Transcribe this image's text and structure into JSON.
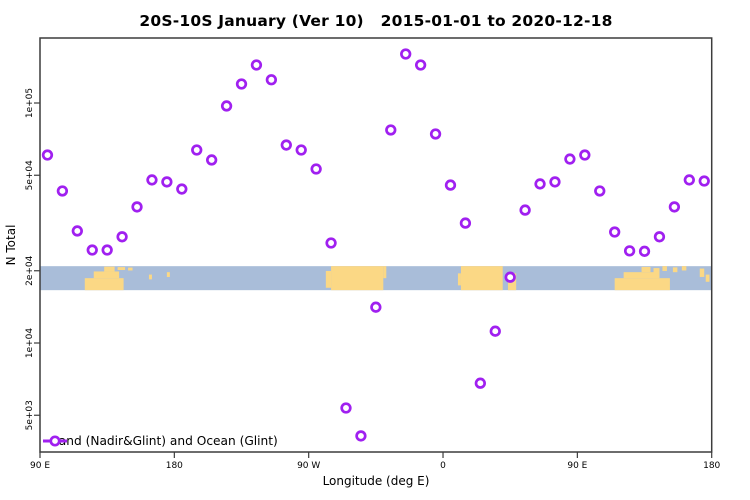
{
  "colors": {
    "marker": "#A020F0",
    "marker_fill": "#FFFFFF",
    "ocean": "#A9BDD9",
    "land": "#FBD885",
    "axis": "#3C3C3C",
    "text": "#000000"
  },
  "y_axis": {
    "title": "N Total",
    "scale": "log10",
    "ticks": [
      {
        "value": 100000,
        "label": "1e+05"
      },
      {
        "value": 50000,
        "label": "5e+04"
      },
      {
        "value": 20000,
        "label": "2e+04"
      },
      {
        "value": 10000,
        "label": "1e+04"
      },
      {
        "value": 5000,
        "label": "5e+03"
      }
    ]
  },
  "x_axis": {
    "title": "Longitude (deg E)",
    "span_deg": 450,
    "ticks": [
      {
        "offset_deg": 0,
        "label": "90 E"
      },
      {
        "offset_deg": 90,
        "label": "180"
      },
      {
        "offset_deg": 180,
        "label": "90 W"
      },
      {
        "offset_deg": 270,
        "label": "0"
      },
      {
        "offset_deg": 360,
        "label": "90 E"
      },
      {
        "offset_deg": 450,
        "label": "180"
      }
    ]
  },
  "legend": {
    "marker": "open-circle-on-line"
  },
  "chart_data": {
    "type": "scatter",
    "title": "20S-10S January (Ver 10)   2015-01-01 to 2020-12-18",
    "xlabel": "Longitude (deg E)",
    "ylabel": "N Total",
    "y_scale": "log10",
    "ylim": [
      4000,
      200000
    ],
    "x_axis_note": "longitude wraps eastward: 90E -> 180 -> 90W -> 0 -> 90E -> 180 (450 deg total)",
    "grid": false,
    "legend_position": "bottom-left inside plot",
    "point_format": [
      "deg_east_of_90E",
      "n_total"
    ],
    "series": [
      {
        "name": "Land (Nadir&Glint) and Ocean (Glint)",
        "points": [
          [
            5,
            60700
          ],
          [
            15,
            43000
          ],
          [
            25,
            29300
          ],
          [
            35,
            24400
          ],
          [
            45,
            24400
          ],
          [
            55,
            27700
          ],
          [
            65,
            36900
          ],
          [
            75,
            47800
          ],
          [
            85,
            46900
          ],
          [
            95,
            43800
          ],
          [
            105,
            63700
          ],
          [
            115,
            57900
          ],
          [
            125,
            97200
          ],
          [
            135,
            120000
          ],
          [
            145,
            144000
          ],
          [
            155,
            125000
          ],
          [
            165,
            66800
          ],
          [
            175,
            63700
          ],
          [
            185,
            53100
          ],
          [
            195,
            26100
          ],
          [
            205,
            5360
          ],
          [
            215,
            4100
          ],
          [
            225,
            14100
          ],
          [
            235,
            77200
          ],
          [
            245,
            160000
          ],
          [
            255,
            144000
          ],
          [
            265,
            74300
          ],
          [
            275,
            45500
          ],
          [
            285,
            31600
          ],
          [
            295,
            6800
          ],
          [
            305,
            11200
          ],
          [
            315,
            18800
          ],
          [
            325,
            35800
          ],
          [
            335,
            46000
          ],
          [
            345,
            46900
          ],
          [
            355,
            58400
          ],
          [
            365,
            60700
          ],
          [
            375,
            43000
          ],
          [
            385,
            29000
          ],
          [
            395,
            24200
          ],
          [
            405,
            24100
          ],
          [
            415,
            27700
          ],
          [
            425,
            36900
          ],
          [
            435,
            47800
          ],
          [
            445,
            47300
          ]
        ]
      }
    ],
    "map_strip": {
      "description": "world coastline band for 20S-10S drawn across plot",
      "n_top": 20900,
      "n_bottom": 16600,
      "rect_format": [
        "deg_start",
        "deg_end",
        "top_frac",
        "bottom_frac"
      ],
      "land_patches": [
        {
          "name": "australia-new-guinea-west",
          "rects": [
            [
              30,
              56,
              0.5,
              1
            ],
            [
              36,
              53,
              0.22,
              0.5
            ],
            [
              43,
              50,
              0.02,
              0.22
            ],
            [
              52,
              57,
              0.04,
              0.16
            ],
            [
              59,
              62,
              0.06,
              0.18
            ]
          ]
        },
        {
          "name": "pacific-islands-west",
          "rects": [
            [
              73,
              75,
              0.35,
              0.55
            ],
            [
              85,
              87,
              0.25,
              0.45
            ]
          ]
        },
        {
          "name": "south-america",
          "rects": [
            [
              191.5,
              195,
              0.2,
              0.9
            ],
            [
              195,
              230,
              0,
              1
            ],
            [
              230,
              232,
              0,
              0.5
            ]
          ]
        },
        {
          "name": "africa",
          "rects": [
            [
              280,
              282,
              0.3,
              0.8
            ],
            [
              282,
              310,
              0,
              1
            ]
          ]
        },
        {
          "name": "madagascar",
          "rects": [
            [
              313.5,
              319,
              0.3,
              1
            ]
          ]
        },
        {
          "name": "australia-new-guinea-east",
          "rects": [
            [
              385,
              422,
              0.5,
              1
            ],
            [
              391,
              414,
              0.25,
              0.5
            ],
            [
              403,
              409,
              0.03,
              0.25
            ],
            [
              411,
              415,
              0.08,
              0.5
            ],
            [
              417,
              420,
              0,
              0.2
            ]
          ]
        },
        {
          "name": "melanesia-islands",
          "rects": [
            [
              424,
              427,
              0.05,
              0.25
            ],
            [
              430,
              433,
              0,
              0.18
            ],
            [
              442,
              445,
              0.1,
              0.45
            ],
            [
              446,
              448.5,
              0.35,
              0.65
            ]
          ]
        }
      ]
    }
  }
}
